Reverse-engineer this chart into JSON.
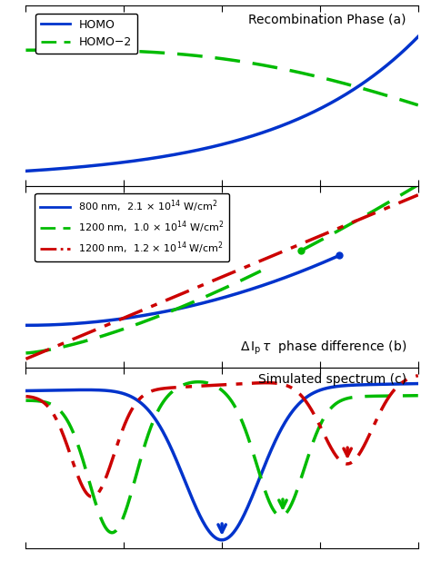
{
  "title_a": "Recombination Phase (a)",
  "title_c": "Simulated spectrum (c)",
  "legend_a": [
    "HOMO",
    "HOMO−2"
  ],
  "legend_b_1": "800 nm,  2.1 × 10$^{14}$ W/cm$^2$",
  "legend_b_2": "1200 nm,  1.0 × 10$^{14}$ W/cm$^2$",
  "legend_b_3": "1200 nm,  1.2 × 10$^{14}$ W/cm$^2$",
  "color_blue": "#0033CC",
  "color_green": "#00BB00",
  "color_red": "#CC0000",
  "bg_color": "#FFFFFF",
  "figsize": [
    4.74,
    6.29
  ],
  "dpi": 100
}
